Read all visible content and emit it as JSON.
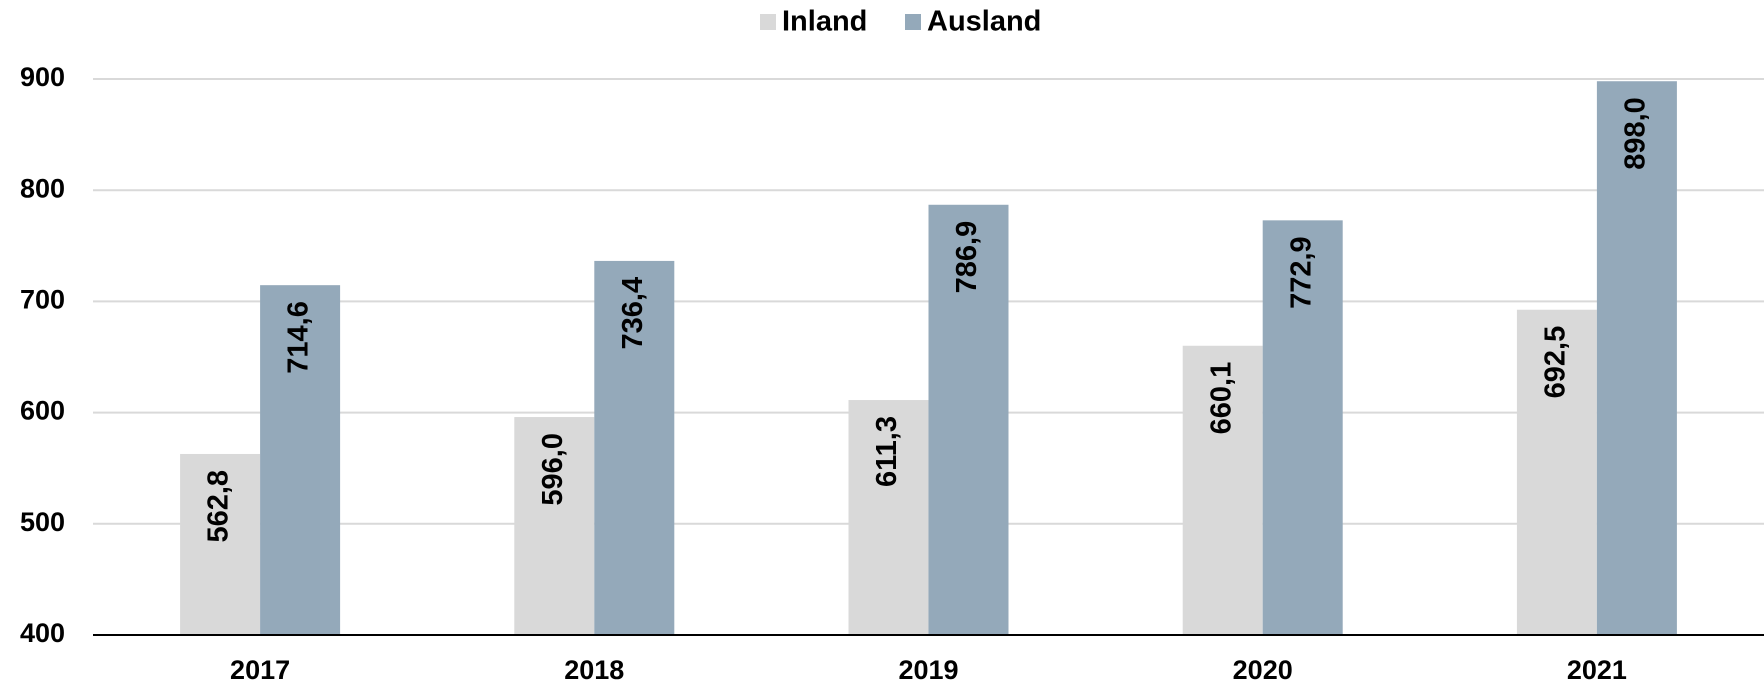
{
  "chart_data": {
    "type": "bar",
    "categories": [
      "2017",
      "2018",
      "2019",
      "2020",
      "2021"
    ],
    "series": [
      {
        "name": "Inland",
        "color": "#d9d9d9",
        "values": [
          562.8,
          596.0,
          611.3,
          660.1,
          692.5
        ],
        "value_labels": [
          "562,8",
          "596,0",
          "611,3",
          "660,1",
          "692,5"
        ]
      },
      {
        "name": "Ausland",
        "color": "#94a9ba",
        "values": [
          714.6,
          736.4,
          786.9,
          772.9,
          898.0
        ],
        "value_labels": [
          "714,6",
          "736,4",
          "786,9",
          "772,9",
          "898,0"
        ]
      }
    ],
    "ylim": [
      400,
      900
    ],
    "yticks": [
      400,
      500,
      600,
      700,
      800,
      900
    ],
    "grid": true,
    "legend": "top"
  }
}
